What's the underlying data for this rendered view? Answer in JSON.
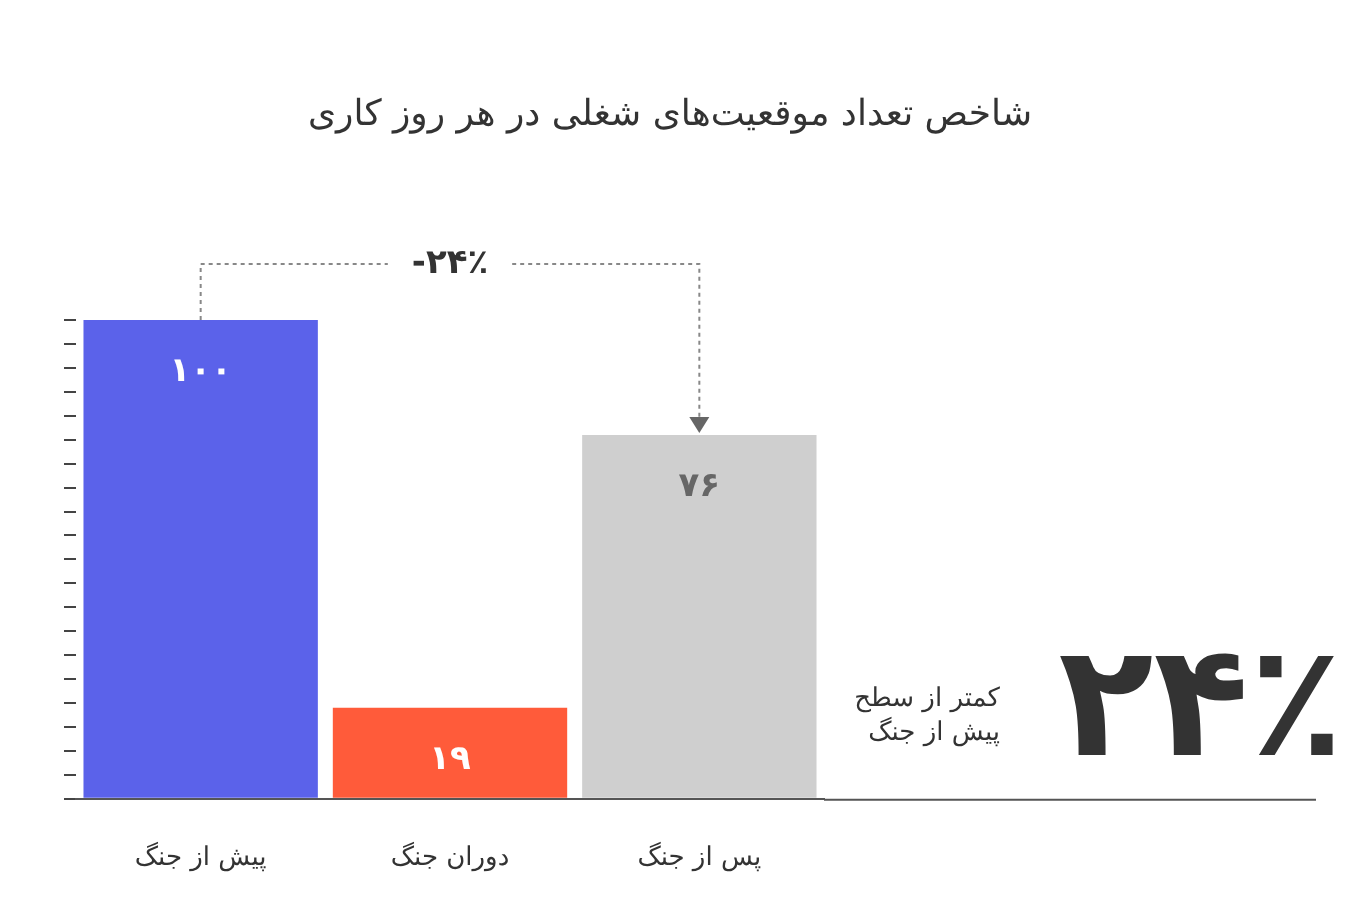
{
  "chart_data": {
    "type": "bar",
    "title": "شاخص تعداد موقعیت‌های شغلی در هر روز کاری",
    "categories": [
      "پیش از جنگ",
      "دوران جنگ",
      "پس از جنگ"
    ],
    "values": [
      100,
      19,
      76
    ],
    "colors": [
      "#5b62ea",
      "#ff5b3a",
      "#cfcfcf"
    ],
    "value_labels": [
      "۱۰۰",
      "۱۹",
      "۷۶"
    ],
    "ylim": [
      0,
      100
    ],
    "yticks": [
      {
        "value": 0,
        "label": null
      },
      {
        "value": 5,
        "label": null
      },
      {
        "value": 10,
        "label": null
      },
      {
        "value": 15,
        "label": null
      },
      {
        "value": 20,
        "label": null
      },
      {
        "value": 25,
        "label": null
      },
      {
        "value": 30,
        "label": null
      },
      {
        "value": 35,
        "label": null
      },
      {
        "value": 40,
        "label": null
      },
      {
        "value": 45,
        "label": null
      },
      {
        "value": 50,
        "label": null
      },
      {
        "value": 55,
        "label": null
      },
      {
        "value": 60,
        "label": null
      },
      {
        "value": 65,
        "label": null
      },
      {
        "value": 70,
        "label": null
      },
      {
        "value": 75,
        "label": null
      },
      {
        "value": 80,
        "label": null
      },
      {
        "value": 85,
        "label": null
      },
      {
        "value": 90,
        "label": null
      },
      {
        "value": 95,
        "label": null
      },
      {
        "value": 100,
        "label": null
      }
    ],
    "annotations": [
      "-۲۴٪",
      "۲۴٪",
      "کمتر از سطح پیش از جنگ"
    ],
    "grid": false,
    "legend": false
  }
}
